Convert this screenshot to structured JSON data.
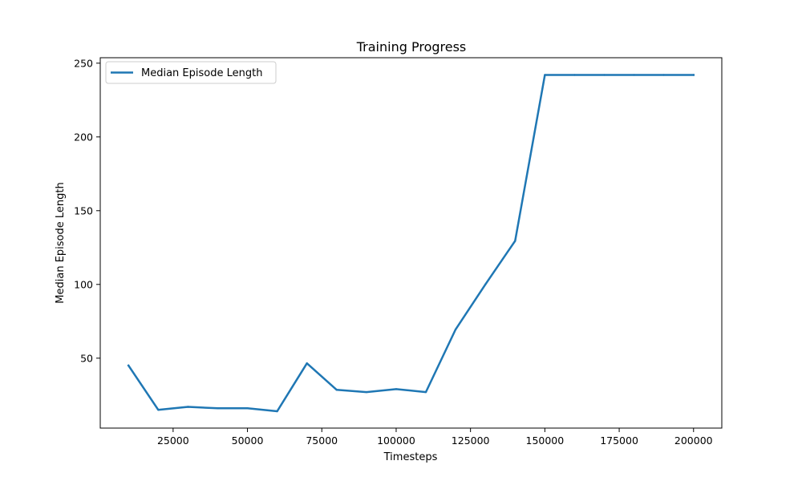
{
  "chart_data": {
    "type": "line",
    "title": "Training Progress",
    "xlabel": "Timesteps",
    "ylabel": "Median Episode Length",
    "xlim": [
      500,
      209500
    ],
    "ylim": [
      2.6,
      253.7
    ],
    "x_ticks": [
      25000,
      50000,
      75000,
      100000,
      125000,
      150000,
      175000,
      200000
    ],
    "y_ticks": [
      50,
      100,
      150,
      200,
      250
    ],
    "grid": false,
    "legend_position": "upper-left",
    "series": [
      {
        "name": "Median Episode Length",
        "color": "#1f77b4",
        "x": [
          10000,
          20000,
          30000,
          40000,
          50000,
          60000,
          70000,
          80000,
          90000,
          100000,
          110000,
          120000,
          130000,
          140000,
          150000,
          160000,
          170000,
          180000,
          190000,
          200000
        ],
        "y": [
          45,
          15,
          17,
          16,
          16,
          14,
          46.5,
          28.5,
          27,
          29,
          27,
          69.5,
          100,
          129.5,
          242,
          242,
          242,
          242,
          242,
          242
        ]
      }
    ]
  }
}
